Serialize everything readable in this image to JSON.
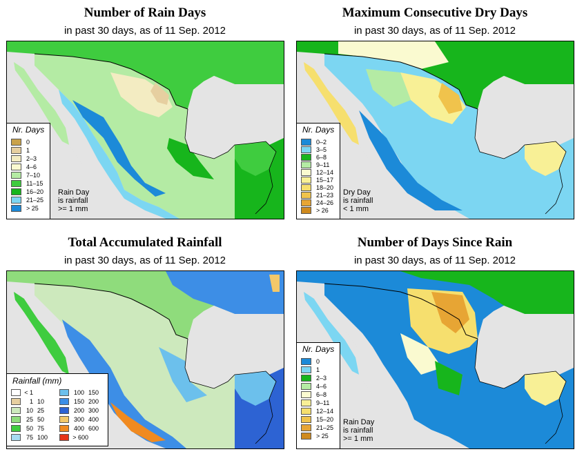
{
  "panels": [
    {
      "title": "Number of Rain Days",
      "subtitle": "in past 30 days, as of  11 Sep. 2012",
      "legend": {
        "title": "Nr. Days",
        "items": [
          {
            "label": "0",
            "color": "#c9a24a"
          },
          {
            "label": "1",
            "color": "#e6cfa0"
          },
          {
            "label": "2–3",
            "color": "#f3ecc2"
          },
          {
            "label": "4–6",
            "color": "#fafad0"
          },
          {
            "label": "7–10",
            "color": "#b4eba4"
          },
          {
            "label": "11–15",
            "color": "#3fcc3f"
          },
          {
            "label": "16–20",
            "color": "#17b51c"
          },
          {
            "label": "21–25",
            "color": "#7cd6f2"
          },
          {
            "label": "> 25",
            "color": "#1c8ad8"
          }
        ]
      },
      "note": [
        "Rain Day",
        "is rainfall",
        ">= 1 mm"
      ]
    },
    {
      "title": "Maximum Consecutive Dry Days",
      "subtitle": "in past 30 days, as of  11 Sep. 2012",
      "legend": {
        "title": "Nr. Days",
        "items": [
          {
            "label": "0–2",
            "color": "#1c8ad8"
          },
          {
            "label": "3–5",
            "color": "#7cd6f2"
          },
          {
            "label": "6–8",
            "color": "#17b51c"
          },
          {
            "label": "9–11",
            "color": "#b4eba4"
          },
          {
            "label": "12–14",
            "color": "#fafad0"
          },
          {
            "label": "15–17",
            "color": "#f8f096"
          },
          {
            "label": "18–20",
            "color": "#f6df6e"
          },
          {
            "label": "21–23",
            "color": "#f0c34c"
          },
          {
            "label": "24–26",
            "color": "#e7a534"
          },
          {
            "label": "> 26",
            "color": "#cf8a1e"
          }
        ]
      },
      "note": [
        "Dry Day",
        "is rainfall",
        "< 1 mm"
      ]
    },
    {
      "title": "Total Accumulated Rainfall",
      "subtitle": "in past 30 days, as of  11 Sep. 2012",
      "legend": {
        "title": "Rainfall (mm)",
        "items": [
          {
            "lo": "< 1",
            "hi": "",
            "color": "#ffffff"
          },
          {
            "lo": "1",
            "hi": "10",
            "color": "#e6cfa0"
          },
          {
            "lo": "10",
            "hi": "25",
            "color": "#cde9bd"
          },
          {
            "lo": "25",
            "hi": "50",
            "color": "#8fdc7c"
          },
          {
            "lo": "50",
            "hi": "75",
            "color": "#3fcc3f"
          },
          {
            "lo": "75",
            "hi": "100",
            "color": "#a6dcf2"
          },
          {
            "lo": "100",
            "hi": "150",
            "color": "#6cc0ec"
          },
          {
            "lo": "150",
            "hi": "200",
            "color": "#3d8ee6"
          },
          {
            "lo": "200",
            "hi": "300",
            "color": "#2d63d3"
          },
          {
            "lo": "300",
            "hi": "400",
            "color": "#f3c86a"
          },
          {
            "lo": "400",
            "hi": "600",
            "color": "#f08a20"
          },
          {
            "lo": "> 600",
            "hi": "",
            "color": "#e53418"
          }
        ]
      }
    },
    {
      "title": "Number of Days Since Rain",
      "subtitle": "in past 30 days, as of  11 Sep. 2012",
      "legend": {
        "title": "Nr. Days",
        "items": [
          {
            "label": "0",
            "color": "#1c8ad8"
          },
          {
            "label": "1",
            "color": "#7cd6f2"
          },
          {
            "label": "2–3",
            "color": "#17b51c"
          },
          {
            "label": "4–6",
            "color": "#b4eba4"
          },
          {
            "label": "6–8",
            "color": "#fafad0"
          },
          {
            "label": "9–11",
            "color": "#f8f096"
          },
          {
            "label": "12–14",
            "color": "#f6df6e"
          },
          {
            "label": "15–20",
            "color": "#f0c34c"
          },
          {
            "label": "21–25",
            "color": "#e7a534"
          },
          {
            "label": "> 25",
            "color": "#cf8a1e"
          }
        ]
      },
      "note": [
        "Rain Day",
        "is rainfall",
        ">= 1 mm"
      ]
    }
  ]
}
